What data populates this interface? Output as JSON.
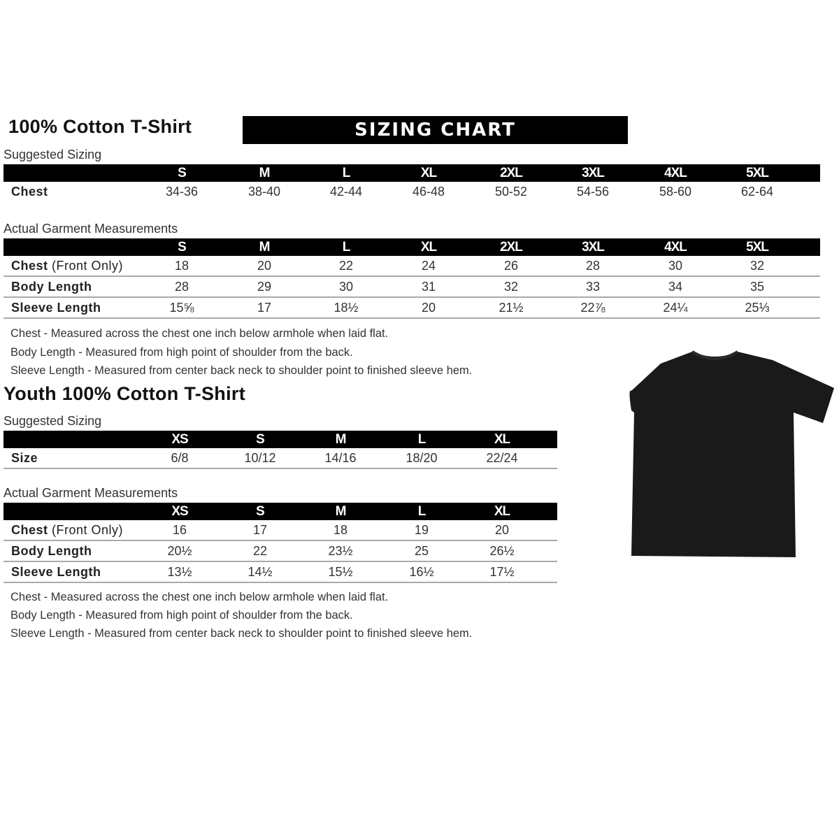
{
  "adult": {
    "title": "100% Cotton T-Shirt",
    "banner": "SIZING CHART",
    "suggested_label": "Suggested Sizing",
    "sizes": [
      "S",
      "M",
      "L",
      "XL",
      "2XL",
      "3XL",
      "4XL",
      "5XL"
    ],
    "suggested_rows": [
      {
        "label": "Chest",
        "values": [
          "34-36",
          "38-40",
          "42-44",
          "46-48",
          "50-52",
          "54-56",
          "58-60",
          "62-64"
        ]
      }
    ],
    "actual_label": "Actual Garment Measurements",
    "actual_rows": [
      {
        "label": "Chest",
        "label_note": "(Front Only)",
        "values": [
          "18",
          "20",
          "22",
          "24",
          "26",
          "28",
          "30",
          "32"
        ]
      },
      {
        "label": "Body Length",
        "label_note": "",
        "values": [
          "28",
          "29",
          "30",
          "31",
          "32",
          "33",
          "34",
          "35"
        ]
      },
      {
        "label": "Sleeve Length",
        "label_note": "",
        "values": [
          "15⅝",
          "17",
          "18½",
          "20",
          "21½",
          "22⅞",
          "24¼",
          "25⅓"
        ]
      }
    ],
    "notes": [
      "Chest - Measured across the chest one inch below armhole when laid flat.",
      "Body Length - Measured from high point of shoulder from the back.",
      "Sleeve Length - Measured from center back neck to shoulder point to finished sleeve hem."
    ]
  },
  "youth": {
    "title": "Youth 100% Cotton T-Shirt",
    "suggested_label": "Suggested Sizing",
    "sizes": [
      "XS",
      "S",
      "M",
      "L",
      "XL"
    ],
    "suggested_rows": [
      {
        "label": "Size",
        "values": [
          "6/8",
          "10/12",
          "14/16",
          "18/20",
          "22/24"
        ]
      }
    ],
    "actual_label": "Actual Garment Measurements",
    "actual_rows": [
      {
        "label": "Chest",
        "label_note": "(Front Only)",
        "values": [
          "16",
          "17",
          "18",
          "19",
          "20"
        ]
      },
      {
        "label": "Body Length",
        "label_note": "",
        "values": [
          "20½",
          "22",
          "23½",
          "25",
          "26½"
        ]
      },
      {
        "label": "Sleeve Length",
        "label_note": "",
        "values": [
          "13½",
          "14½",
          "15½",
          "16½",
          "17½"
        ]
      }
    ],
    "notes": [
      "Chest - Measured across the chest one inch below armhole when laid flat.",
      "Body Length - Measured from high point of shoulder from the back.",
      "Sleeve Length - Measured from center back neck to shoulder point to finished sleeve hem."
    ]
  },
  "shirt_color": "#1a1a1a"
}
